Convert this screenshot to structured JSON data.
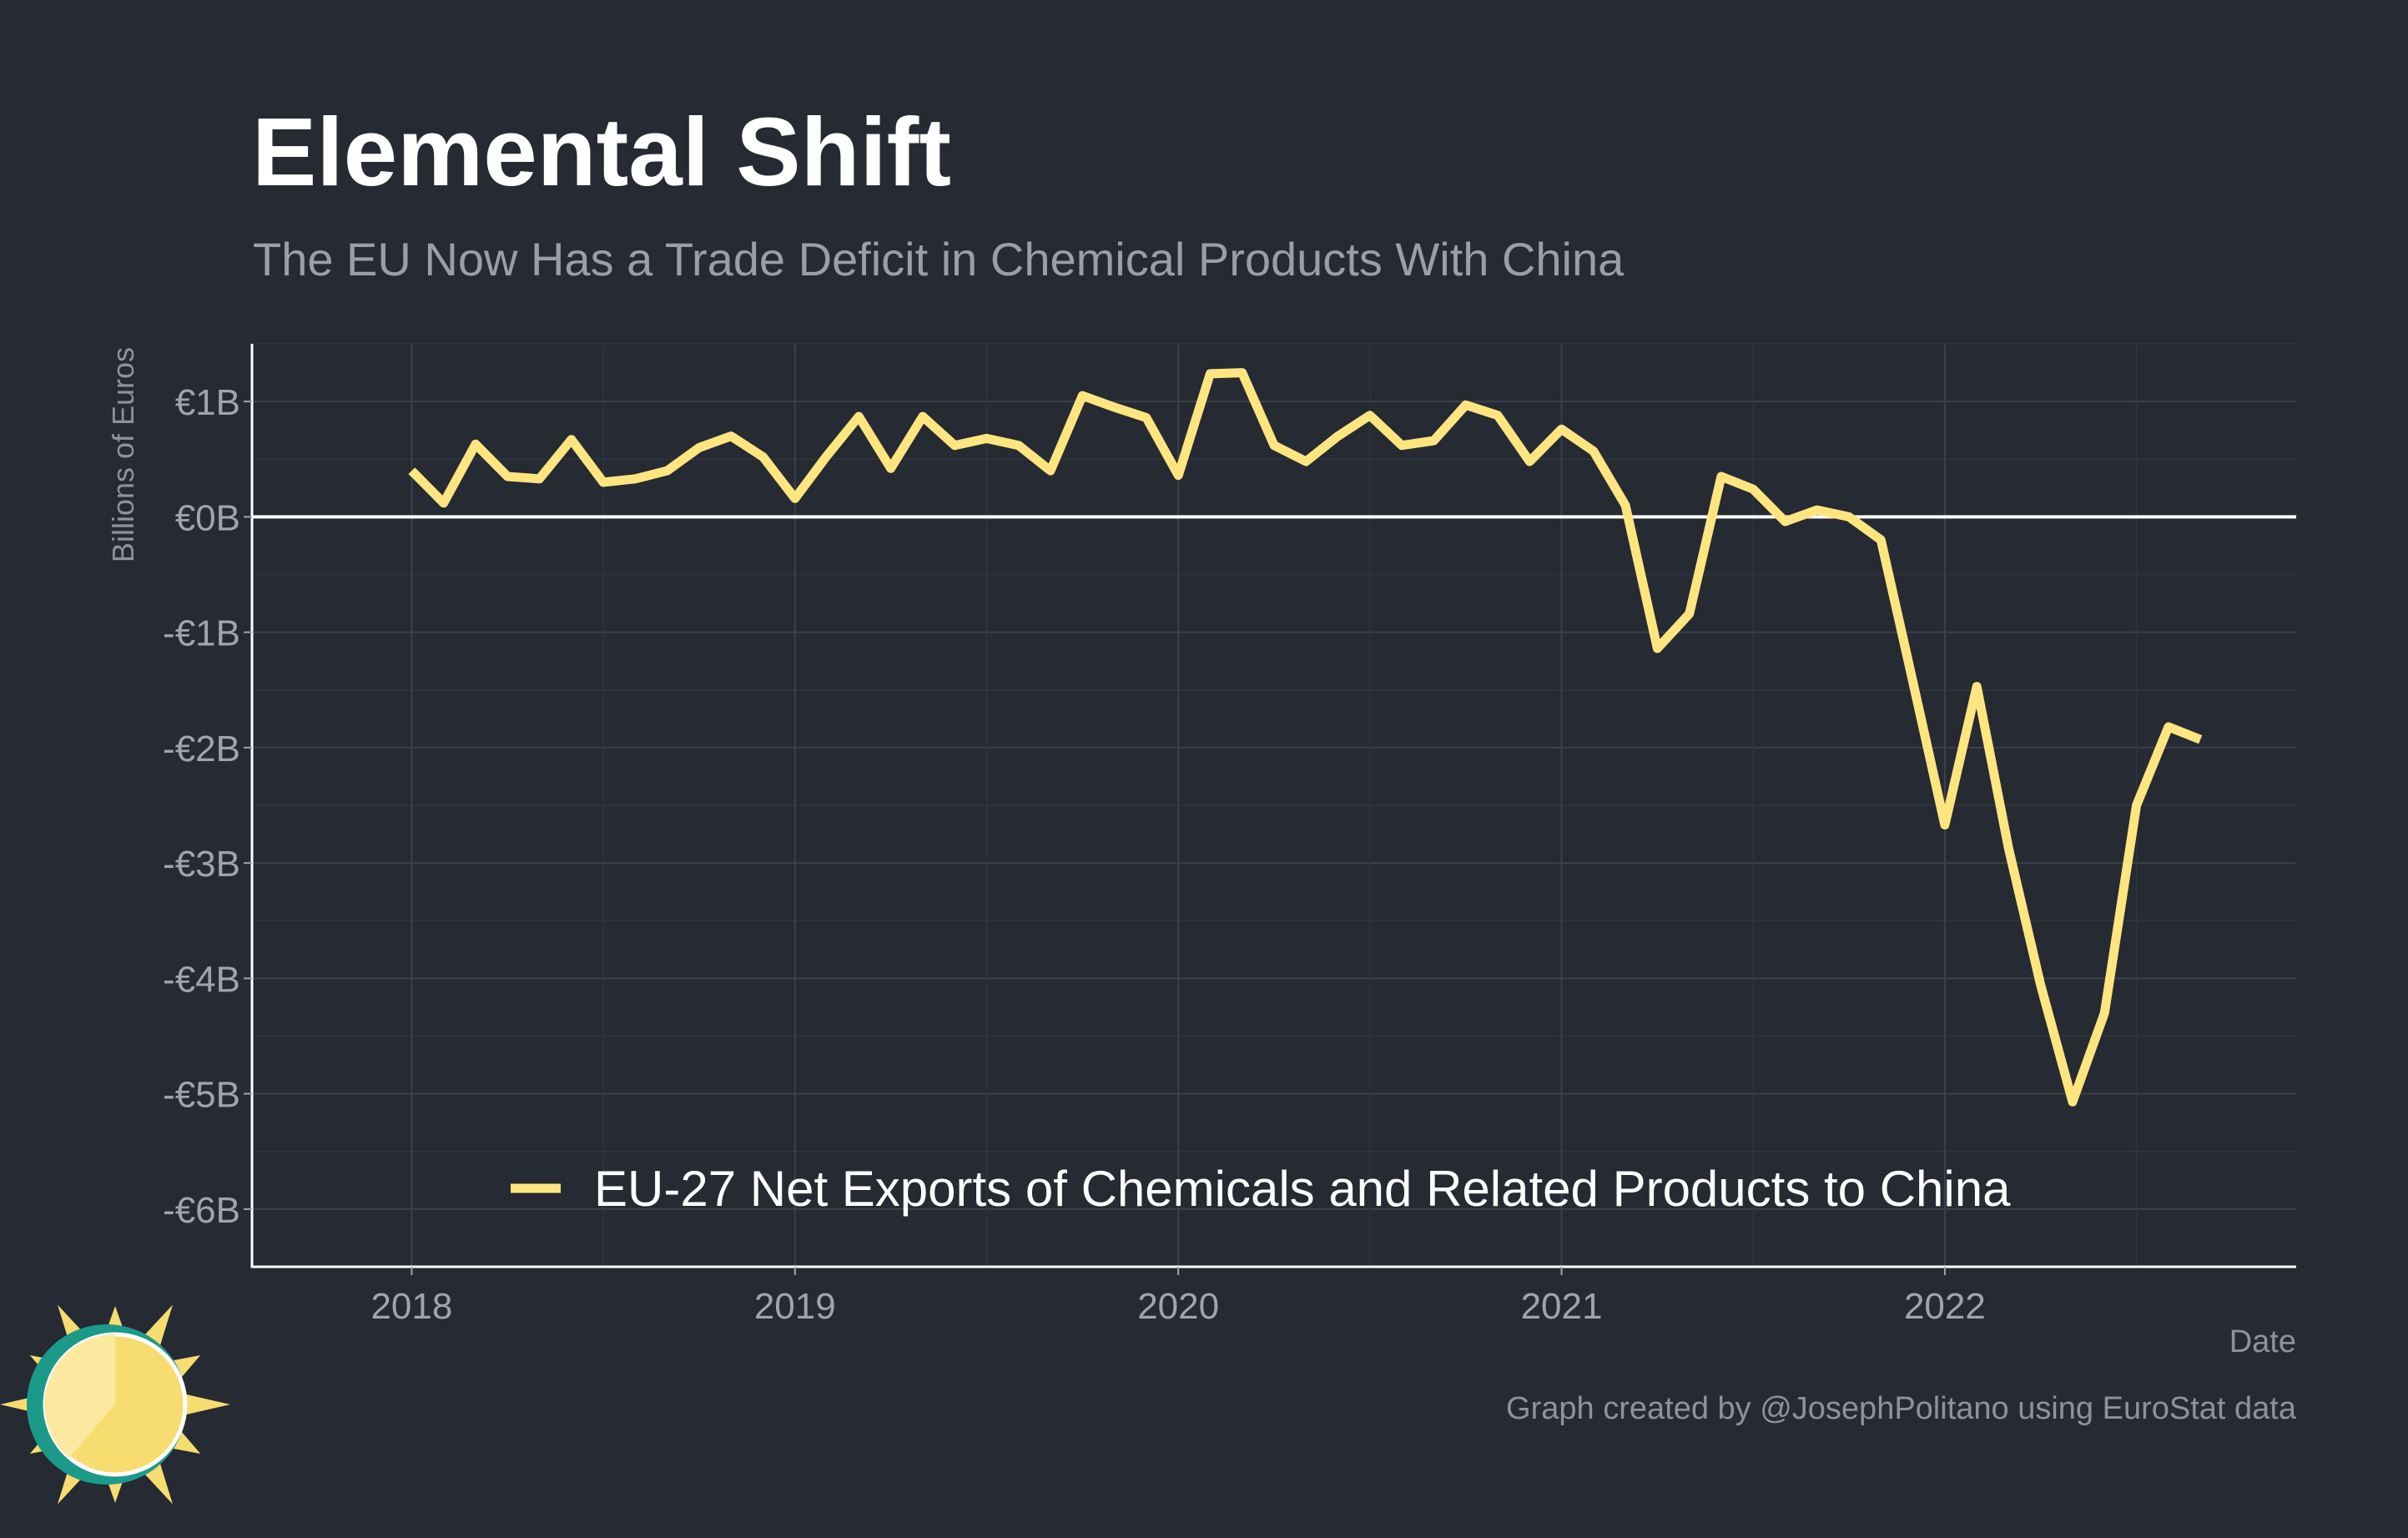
{
  "chart_data": {
    "type": "line",
    "title": "Elemental Shift",
    "subtitle": "The EU Now Has a Trade Deficit in Chemical Products With China",
    "xlabel": "Date",
    "ylabel": "Billions of Euros",
    "caption": "Graph created by @JosephPolitano using EuroStat data",
    "y_ticks": [
      {
        "value": 1,
        "label": "€1B"
      },
      {
        "value": 0,
        "label": "€0B"
      },
      {
        "value": -1,
        "label": "-€1B"
      },
      {
        "value": -2,
        "label": "-€2B"
      },
      {
        "value": -3,
        "label": "-€3B"
      },
      {
        "value": -4,
        "label": "-€4B"
      },
      {
        "value": -5,
        "label": "-€5B"
      },
      {
        "value": -6,
        "label": "-€6B"
      }
    ],
    "x_ticks": [
      {
        "value": "2018-01",
        "label": "2018"
      },
      {
        "value": "2019-01",
        "label": "2019"
      },
      {
        "value": "2020-01",
        "label": "2020"
      },
      {
        "value": "2021-01",
        "label": "2021"
      },
      {
        "value": "2022-01",
        "label": "2022"
      }
    ],
    "xlim": [
      "2017-08",
      "2022-12"
    ],
    "ylim": [
      -6.5,
      1.5
    ],
    "grid": true,
    "zero_line": true,
    "legend_position": "bottom",
    "series": [
      {
        "name": "EU-27 Net Exports of Chemicals and Related Products to China",
        "color": "#ffe57f",
        "points": [
          {
            "x": "2018-01",
            "y": 0.4
          },
          {
            "x": "2018-02",
            "y": 0.12
          },
          {
            "x": "2018-03",
            "y": 0.63
          },
          {
            "x": "2018-04",
            "y": 0.35
          },
          {
            "x": "2018-05",
            "y": 0.33
          },
          {
            "x": "2018-06",
            "y": 0.67
          },
          {
            "x": "2018-07",
            "y": 0.3
          },
          {
            "x": "2018-08",
            "y": 0.33
          },
          {
            "x": "2018-09",
            "y": 0.4
          },
          {
            "x": "2018-10",
            "y": 0.6
          },
          {
            "x": "2018-11",
            "y": 0.7
          },
          {
            "x": "2018-12",
            "y": 0.52
          },
          {
            "x": "2019-01",
            "y": 0.16
          },
          {
            "x": "2019-02",
            "y": 0.53
          },
          {
            "x": "2019-03",
            "y": 0.87
          },
          {
            "x": "2019-04",
            "y": 0.42
          },
          {
            "x": "2019-05",
            "y": 0.87
          },
          {
            "x": "2019-06",
            "y": 0.62
          },
          {
            "x": "2019-07",
            "y": 0.68
          },
          {
            "x": "2019-08",
            "y": 0.62
          },
          {
            "x": "2019-09",
            "y": 0.4
          },
          {
            "x": "2019-10",
            "y": 1.05
          },
          {
            "x": "2019-11",
            "y": 0.95
          },
          {
            "x": "2019-12",
            "y": 0.86
          },
          {
            "x": "2020-01",
            "y": 0.36
          },
          {
            "x": "2020-02",
            "y": 1.24
          },
          {
            "x": "2020-03",
            "y": 1.25
          },
          {
            "x": "2020-04",
            "y": 0.62
          },
          {
            "x": "2020-05",
            "y": 0.48
          },
          {
            "x": "2020-06",
            "y": 0.7
          },
          {
            "x": "2020-07",
            "y": 0.88
          },
          {
            "x": "2020-08",
            "y": 0.62
          },
          {
            "x": "2020-09",
            "y": 0.66
          },
          {
            "x": "2020-10",
            "y": 0.97
          },
          {
            "x": "2020-11",
            "y": 0.88
          },
          {
            "x": "2020-12",
            "y": 0.48
          },
          {
            "x": "2021-01",
            "y": 0.76
          },
          {
            "x": "2021-02",
            "y": 0.57
          },
          {
            "x": "2021-03",
            "y": 0.1
          },
          {
            "x": "2021-04",
            "y": -1.14
          },
          {
            "x": "2021-05",
            "y": -0.84
          },
          {
            "x": "2021-06",
            "y": 0.35
          },
          {
            "x": "2021-07",
            "y": 0.24
          },
          {
            "x": "2021-08",
            "y": -0.04
          },
          {
            "x": "2021-09",
            "y": 0.06
          },
          {
            "x": "2021-10",
            "y": 0.0
          },
          {
            "x": "2021-11",
            "y": -0.2
          },
          {
            "x": "2021-12",
            "y": -1.43
          },
          {
            "x": "2022-01",
            "y": -2.67
          },
          {
            "x": "2022-02",
            "y": -1.47
          },
          {
            "x": "2022-03",
            "y": -2.88
          },
          {
            "x": "2022-04",
            "y": -4.06
          },
          {
            "x": "2022-05",
            "y": -5.07
          },
          {
            "x": "2022-06",
            "y": -4.3
          },
          {
            "x": "2022-07",
            "y": -2.5
          },
          {
            "x": "2022-08",
            "y": -1.82
          },
          {
            "x": "2022-09",
            "y": -1.93
          }
        ]
      }
    ]
  },
  "logo": {
    "name": "sun-logo-icon",
    "colors": [
      "#1b9a8a",
      "#f7dc6f",
      "#fbe9a0"
    ]
  }
}
